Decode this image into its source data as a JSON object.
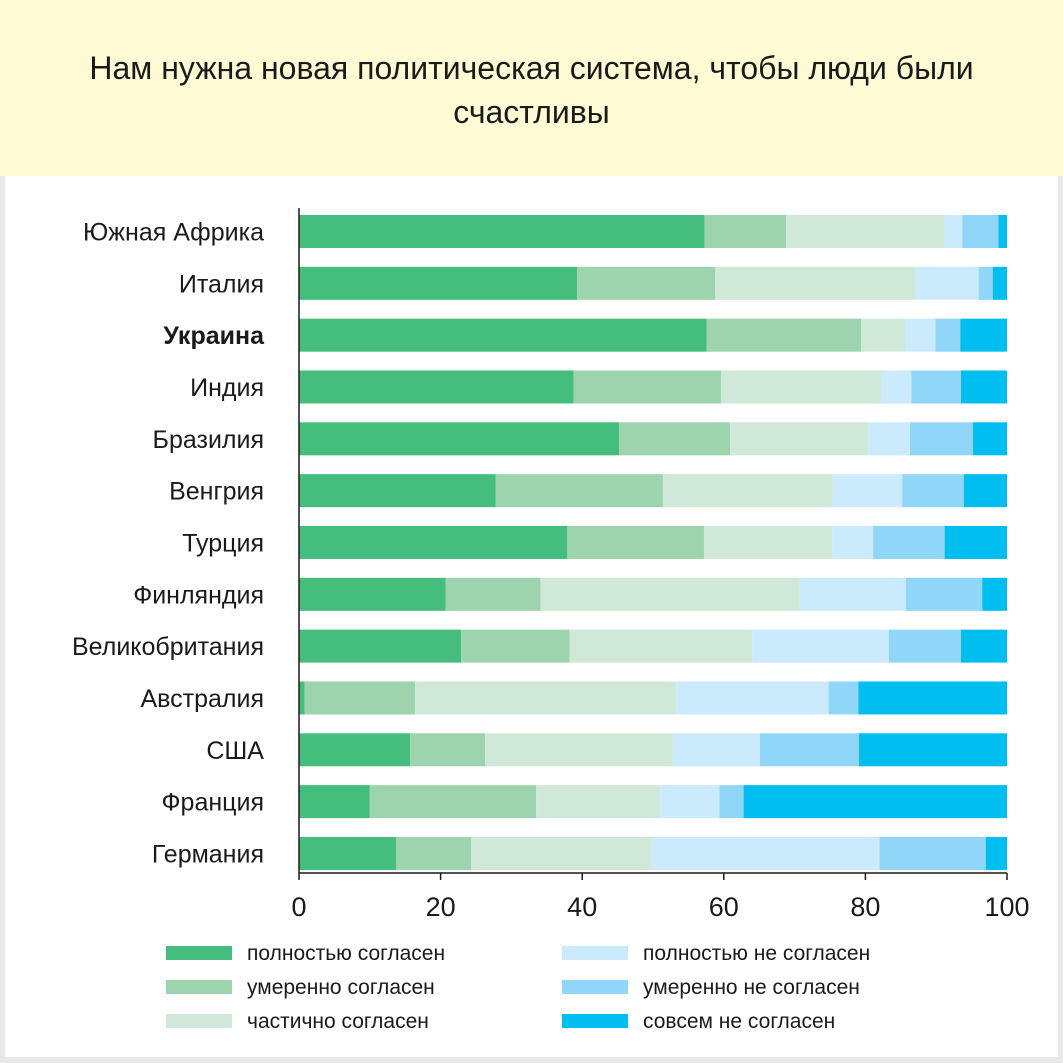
{
  "title": "Нам нужна новая политическая система, чтобы люди были счастливы",
  "chart_data": {
    "type": "bar",
    "orientation": "horizontal",
    "stacked": true,
    "title": "Нам нужна новая политическая система, чтобы люди были счастливы",
    "xlabel": "",
    "ylabel": "",
    "xlim": [
      0,
      100
    ],
    "xticks": [
      "0",
      "20",
      "40",
      "60",
      "80",
      "100"
    ],
    "grid": false,
    "legend_position": "bottom",
    "highlight_category": "Украина",
    "categories": [
      "Южная Африка",
      "Италия",
      "Украина",
      "Индия",
      "Бразилия",
      "Венгрия",
      "Турция",
      "Финляндия",
      "Великобритания",
      "Австралия",
      "США",
      "Франция",
      "Германия"
    ],
    "series": [
      {
        "name": "полностью согласен",
        "color": "#45be7d",
        "values": [
          57.3,
          39.3,
          57.6,
          38.8,
          45.2,
          27.8,
          37.9,
          20.7,
          22.9,
          0.8,
          15.7,
          10.0,
          13.7
        ]
      },
      {
        "name": "умеренно согласен",
        "color": "#9dd4ae",
        "values": [
          11.5,
          19.5,
          21.8,
          20.8,
          15.7,
          23.6,
          19.3,
          13.4,
          15.3,
          15.6,
          10.6,
          23.5,
          10.6
        ]
      },
      {
        "name": "частично согласен",
        "color": "#cfe8d7",
        "values": [
          22.4,
          28.3,
          6.2,
          22.6,
          19.5,
          24.0,
          18.1,
          36.6,
          25.8,
          36.9,
          26.5,
          17.5,
          25.5
        ]
      },
      {
        "name": "полностью не согласен",
        "color": "#cbeafb",
        "values": [
          2.5,
          8.9,
          4.3,
          4.3,
          5.9,
          9.8,
          5.8,
          15.0,
          19.3,
          21.5,
          12.3,
          8.4,
          32.2
        ]
      },
      {
        "name": "умеренно не согласен",
        "color": "#8fd6f8",
        "values": [
          5.1,
          2.0,
          3.5,
          7.0,
          8.9,
          8.7,
          10.1,
          10.8,
          10.2,
          4.2,
          14.0,
          3.4,
          15.0
        ]
      },
      {
        "name": "совсем не согласен",
        "color": "#00bff0",
        "values": [
          1.2,
          2.0,
          6.6,
          6.5,
          4.8,
          6.1,
          8.8,
          3.5,
          6.5,
          21.0,
          20.9,
          37.2,
          3.0
        ]
      }
    ]
  }
}
